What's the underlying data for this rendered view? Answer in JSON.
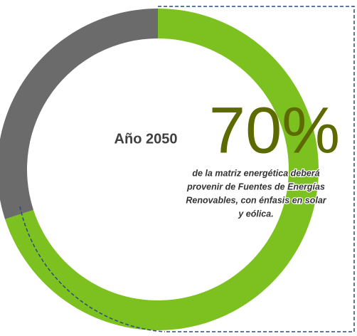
{
  "chart_data": {
    "type": "donut",
    "center_label": "Año 2050",
    "categories": [
      null,
      null
    ],
    "values": [
      70,
      30
    ],
    "value_labels": [
      "70%",
      null
    ],
    "colors": [
      "#7cc11f",
      "#6b6b6b"
    ],
    "description": [
      "de la matriz energética deberá",
      "provenir de Fuentes de Energías",
      "Renovables, con énfasis en solar",
      "y eólica."
    ]
  }
}
